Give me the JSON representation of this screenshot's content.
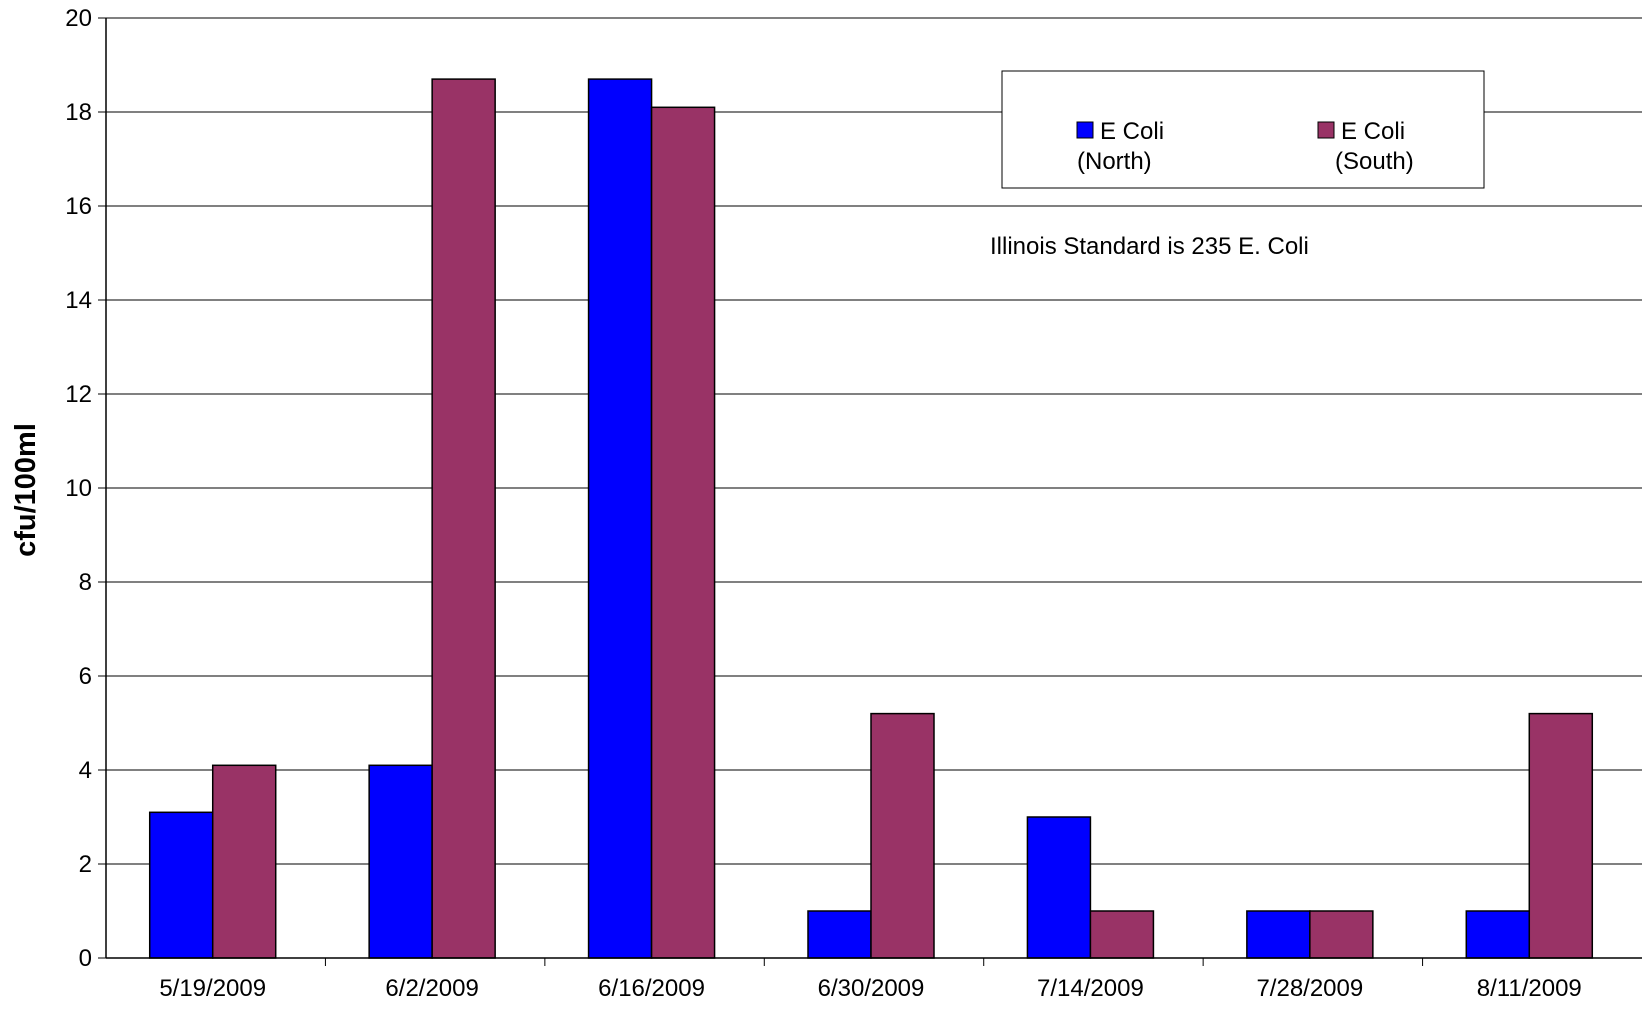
{
  "chart_data": {
    "type": "bar",
    "title": "",
    "xlabel": "",
    "ylabel": "cfu/100ml",
    "ylim": [
      0,
      20
    ],
    "yticks": [
      0,
      2,
      4,
      6,
      8,
      10,
      12,
      14,
      16,
      18,
      20
    ],
    "grid": true,
    "legend_position": "top-right",
    "categories": [
      "5/19/2009",
      "6/2/2009",
      "6/16/2009",
      "6/30/2009",
      "7/14/2009",
      "7/28/2009",
      "8/11/2009"
    ],
    "series": [
      {
        "name": "E Coli (North)",
        "legend_lines": [
          "E Coli",
          "(North)"
        ],
        "color": "#0000ff",
        "values": [
          3.1,
          4.1,
          18.7,
          1,
          3,
          1,
          1
        ]
      },
      {
        "name": "E Coli (South)",
        "legend_lines": [
          "E Coli",
          "(South)"
        ],
        "color": "#993366",
        "values": [
          4.1,
          18.7,
          18.1,
          5.2,
          1,
          1,
          5.2
        ]
      }
    ],
    "annotation": "Illinois Standard is 235 E. Coli"
  }
}
